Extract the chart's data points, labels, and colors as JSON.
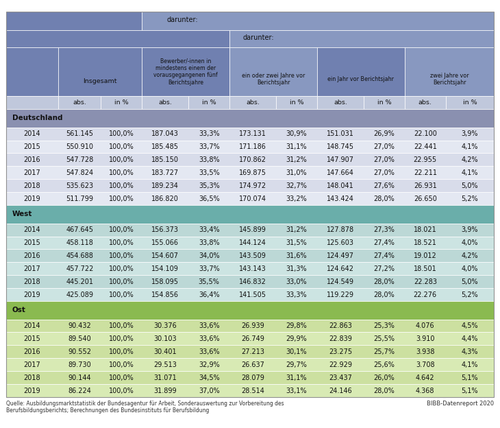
{
  "sections": [
    {
      "name": "Deutschland",
      "sec_color": "#8a90b0",
      "row_colors": [
        "#d8dcea",
        "#e4e8f2"
      ],
      "rows": [
        [
          "2014",
          "561.145",
          "100,0%",
          "187.043",
          "33,3%",
          "173.131",
          "30,9%",
          "151.031",
          "26,9%",
          "22.100",
          "3,9%"
        ],
        [
          "2015",
          "550.910",
          "100,0%",
          "185.485",
          "33,7%",
          "171.186",
          "31,1%",
          "148.745",
          "27,0%",
          "22.441",
          "4,1%"
        ],
        [
          "2016",
          "547.728",
          "100,0%",
          "185.150",
          "33,8%",
          "170.862",
          "31,2%",
          "147.907",
          "27,0%",
          "22.955",
          "4,2%"
        ],
        [
          "2017",
          "547.824",
          "100,0%",
          "183.727",
          "33,5%",
          "169.875",
          "31,0%",
          "147.664",
          "27,0%",
          "22.211",
          "4,1%"
        ],
        [
          "2018",
          "535.623",
          "100,0%",
          "189.234",
          "35,3%",
          "174.972",
          "32,7%",
          "148.041",
          "27,6%",
          "26.931",
          "5,0%"
        ],
        [
          "2019",
          "511.799",
          "100,0%",
          "186.820",
          "36,5%",
          "170.074",
          "33,2%",
          "143.424",
          "28,0%",
          "26.650",
          "5,2%"
        ]
      ]
    },
    {
      "name": "West",
      "sec_color": "#6aaeaa",
      "row_colors": [
        "#bcd8d6",
        "#cce4e2"
      ],
      "rows": [
        [
          "2014",
          "467.645",
          "100,0%",
          "156.373",
          "33,4%",
          "145.899",
          "31,2%",
          "127.878",
          "27,3%",
          "18.021",
          "3,9%"
        ],
        [
          "2015",
          "458.118",
          "100,0%",
          "155.066",
          "33,8%",
          "144.124",
          "31,5%",
          "125.603",
          "27,4%",
          "18.521",
          "4,0%"
        ],
        [
          "2016",
          "454.688",
          "100,0%",
          "154.607",
          "34,0%",
          "143.509",
          "31,6%",
          "124.497",
          "27,4%",
          "19.012",
          "4,2%"
        ],
        [
          "2017",
          "457.722",
          "100,0%",
          "154.109",
          "33,7%",
          "143.143",
          "31,3%",
          "124.642",
          "27,2%",
          "18.501",
          "4,0%"
        ],
        [
          "2018",
          "445.201",
          "100,0%",
          "158.095",
          "35,5%",
          "146.832",
          "33,0%",
          "124.549",
          "28,0%",
          "22.283",
          "5,0%"
        ],
        [
          "2019",
          "425.089",
          "100,0%",
          "154.856",
          "36,4%",
          "141.505",
          "33,3%",
          "119.229",
          "28,0%",
          "22.276",
          "5,2%"
        ]
      ]
    },
    {
      "name": "Ost",
      "sec_color": "#8aba50",
      "row_colors": [
        "#cce0a0",
        "#d8eab4"
      ],
      "rows": [
        [
          "2014",
          "90.432",
          "100,0%",
          "30.376",
          "33,6%",
          "26.939",
          "29,8%",
          "22.863",
          "25,3%",
          "4.076",
          "4,5%"
        ],
        [
          "2015",
          "89.540",
          "100,0%",
          "30.103",
          "33,6%",
          "26.749",
          "29,9%",
          "22.839",
          "25,5%",
          "3.910",
          "4,4%"
        ],
        [
          "2016",
          "90.552",
          "100,0%",
          "30.401",
          "33,6%",
          "27.213",
          "30,1%",
          "23.275",
          "25,7%",
          "3.938",
          "4,3%"
        ],
        [
          "2017",
          "89.730",
          "100,0%",
          "29.513",
          "32,9%",
          "26.637",
          "29,7%",
          "22.929",
          "25,6%",
          "3.708",
          "4,1%"
        ],
        [
          "2018",
          "90.144",
          "100,0%",
          "31.071",
          "34,5%",
          "28.079",
          "31,1%",
          "23.437",
          "26,0%",
          "4.642",
          "5,1%"
        ],
        [
          "2019",
          "86.224",
          "100,0%",
          "31.899",
          "37,0%",
          "28.514",
          "33,1%",
          "24.146",
          "28,0%",
          "4.368",
          "5,1%"
        ]
      ]
    }
  ],
  "footer": "Quelle: Ausbildungsmarktstatistik der Bundesagentur für Arbeit, Sonderauswertung zur Vorbereitung des\nBerufsbildungsberichts; Berechnungen des Bundesinstituts für Berufsbildung",
  "footer_right": "BIBB-Datenreport 2020",
  "hdr_dark": "#7080b0",
  "hdr_mid": "#8898c0",
  "hdr_subh": "#c0c8dc",
  "text_dark": "#111111",
  "text_mid": "#222222"
}
